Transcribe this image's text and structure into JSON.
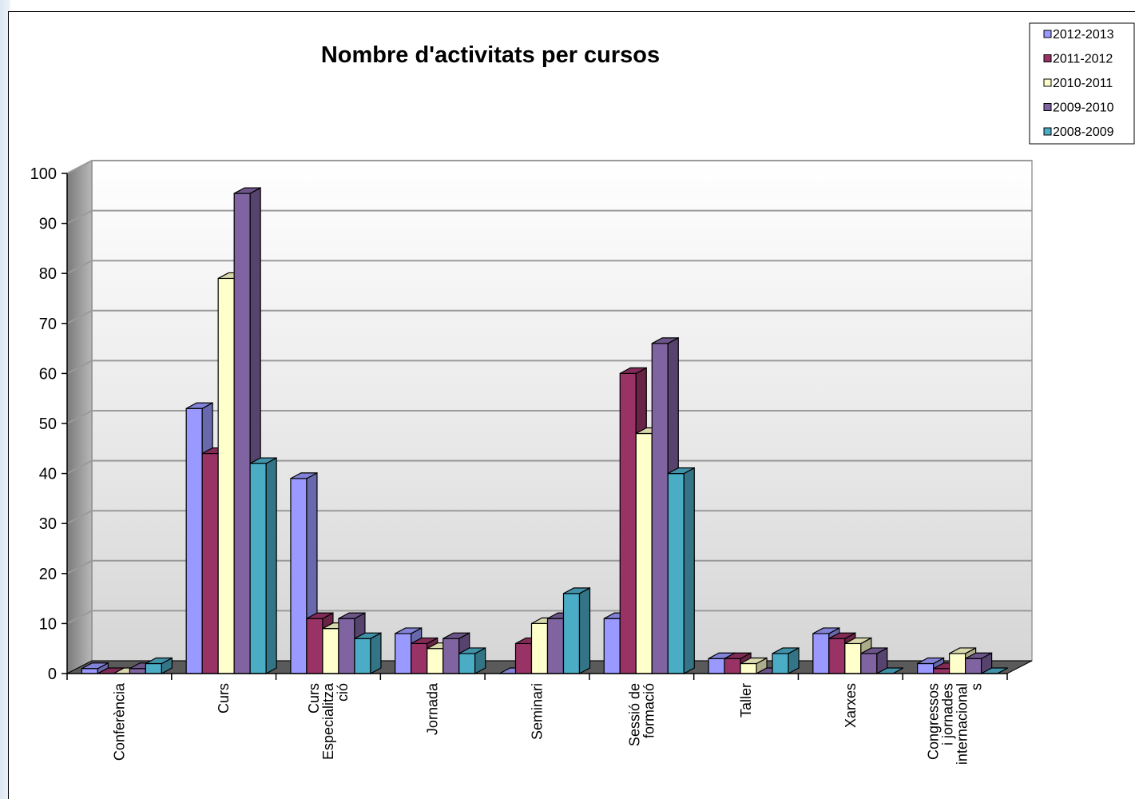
{
  "chart_data": {
    "type": "bar",
    "title": "Nombre d'activitats per cursos",
    "xlabel": "",
    "ylabel": "",
    "ylim": [
      0,
      100
    ],
    "yticks": [
      0,
      10,
      20,
      30,
      40,
      50,
      60,
      70,
      80,
      90,
      100
    ],
    "grid": true,
    "legend_position": "top-right",
    "categories": [
      [
        "Conferència"
      ],
      [
        "Curs"
      ],
      [
        "Curs",
        "Especialitza",
        "ció"
      ],
      [
        "Jornada"
      ],
      [
        "Seminari"
      ],
      [
        "Sessió de",
        "formació"
      ],
      [
        "Taller"
      ],
      [
        "Xarxes"
      ],
      [
        "Congressos",
        "i jornades",
        "internacional",
        "s"
      ]
    ],
    "series": [
      {
        "name": "2012-2013",
        "color": "#9999ff",
        "values": [
          1,
          53,
          39,
          8,
          0,
          11,
          3,
          8,
          2
        ]
      },
      {
        "name": "2011-2012",
        "color": "#993366",
        "values": [
          0,
          44,
          11,
          6,
          6,
          60,
          3,
          7,
          1
        ]
      },
      {
        "name": "2010-2011",
        "color": "#ffffcc",
        "values": [
          0,
          79,
          9,
          5,
          10,
          48,
          2,
          6,
          4
        ]
      },
      {
        "name": "2009-2010",
        "color": "#8064a2",
        "values": [
          1,
          96,
          11,
          7,
          11,
          66,
          0,
          4,
          3
        ]
      },
      {
        "name": "2008-2009",
        "color": "#4bacc6",
        "values": [
          2,
          42,
          7,
          4,
          16,
          40,
          4,
          0,
          0
        ]
      }
    ]
  }
}
